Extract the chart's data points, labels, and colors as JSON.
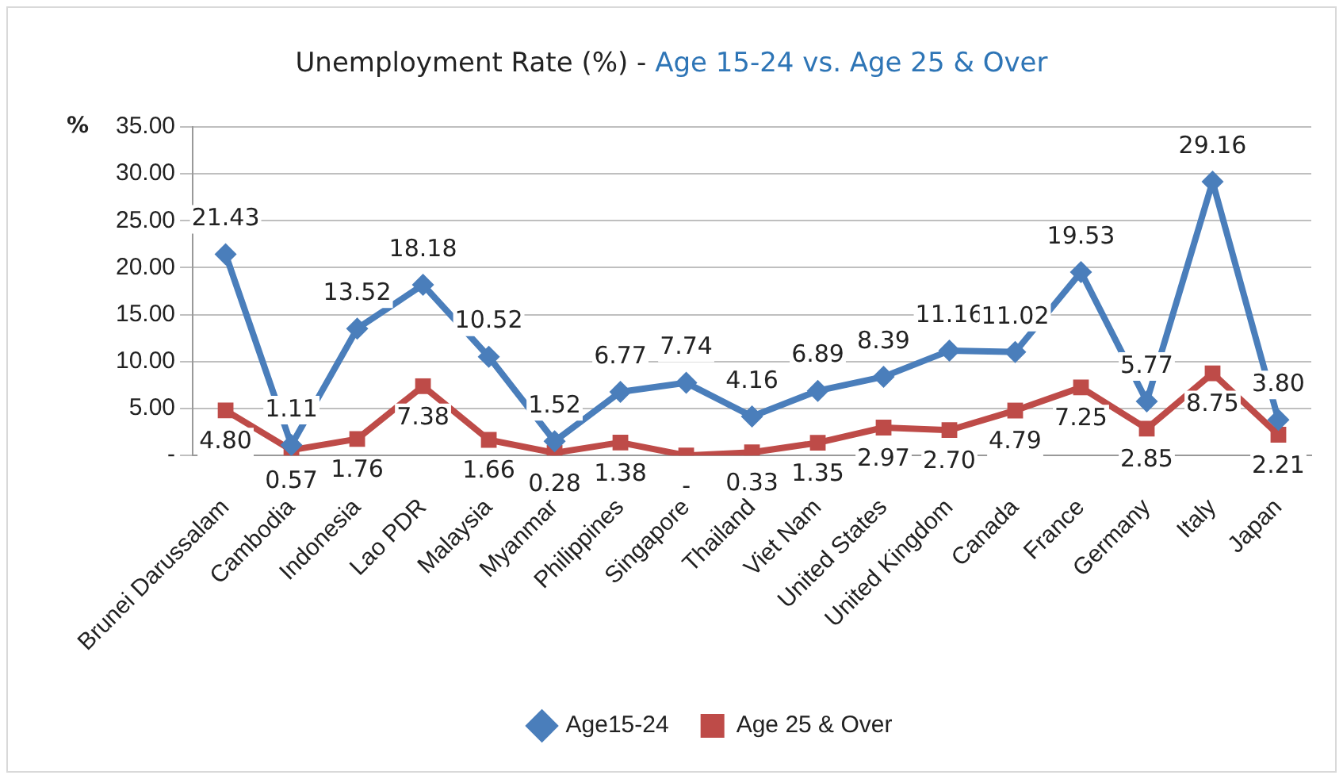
{
  "chart_data": {
    "type": "line",
    "title": "Unemployment Rate (%) -",
    "subtitle": "Age 15-24 vs. Age 25 & Over",
    "ylabel": "%",
    "categories": [
      "Brunei Darussalam",
      "Cambodia",
      "Indonesia",
      "Lao PDR",
      "Malaysia",
      "Myanmar",
      "Philippines",
      "Singapore",
      "Thailand",
      "Viet Nam",
      "United States",
      "United Kingdom",
      "Canada",
      "France",
      "Germany",
      "Italy",
      "Japan"
    ],
    "series": [
      {
        "name": "Age15-24",
        "color": "#4a7ebb",
        "marker": "diamond",
        "values": [
          21.43,
          1.11,
          13.52,
          18.18,
          10.52,
          1.52,
          6.77,
          7.74,
          4.16,
          6.89,
          8.39,
          11.16,
          11.02,
          19.53,
          5.77,
          29.16,
          3.8
        ],
        "value_labels": [
          "21.43",
          "1.11",
          "13.52",
          "18.18",
          "10.52",
          "1.52",
          "6.77",
          "7.74",
          "4.16",
          "6.89",
          "8.39",
          "11.16",
          "11.02",
          "19.53",
          "5.77",
          "29.16",
          "3.80"
        ]
      },
      {
        "name": "Age 25 & Over",
        "color": "#be4b48",
        "marker": "square",
        "values": [
          4.8,
          0.57,
          1.76,
          7.38,
          1.66,
          0.28,
          1.38,
          0,
          0.33,
          1.35,
          2.97,
          2.7,
          4.79,
          7.25,
          2.85,
          8.75,
          2.21
        ],
        "value_labels": [
          "4.80",
          "0.57",
          "1.76",
          "7.38",
          "1.66",
          "0.28",
          "1.38",
          "-",
          "0.33",
          "1.35",
          "2.97",
          "2.70",
          "4.79",
          "7.25",
          "2.85",
          "8.75",
          "2.21"
        ]
      }
    ],
    "ylim": [
      0,
      35
    ],
    "yticks": [
      {
        "value": 0,
        "label": "-"
      },
      {
        "value": 5,
        "label": "5.00"
      },
      {
        "value": 10,
        "label": "10.00"
      },
      {
        "value": 15,
        "label": "15.00"
      },
      {
        "value": 20,
        "label": "20.00"
      },
      {
        "value": 25,
        "label": "25.00"
      },
      {
        "value": 30,
        "label": "30.00"
      },
      {
        "value": 35,
        "label": "35.00"
      }
    ],
    "grid": "y",
    "legend": "bottom",
    "line_style": "solid"
  }
}
